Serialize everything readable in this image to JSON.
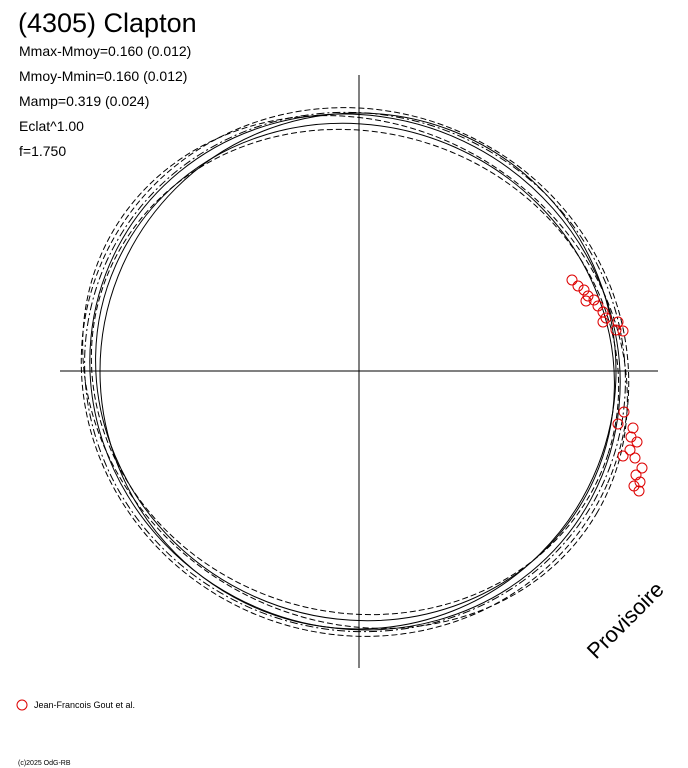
{
  "title": "(4305) Clapton",
  "parameters": [
    "Mmax-Mmoy=0.160 (0.012)",
    "Mmoy-Mmin=0.160 (0.012)",
    "Mamp=0.319 (0.024)",
    "Eclat^1.00",
    "f=1.750"
  ],
  "watermark": "Provisoire",
  "legend": {
    "label": "Jean-Francois Gout et al."
  },
  "footer": "(c)2025 OdG-RB"
}
